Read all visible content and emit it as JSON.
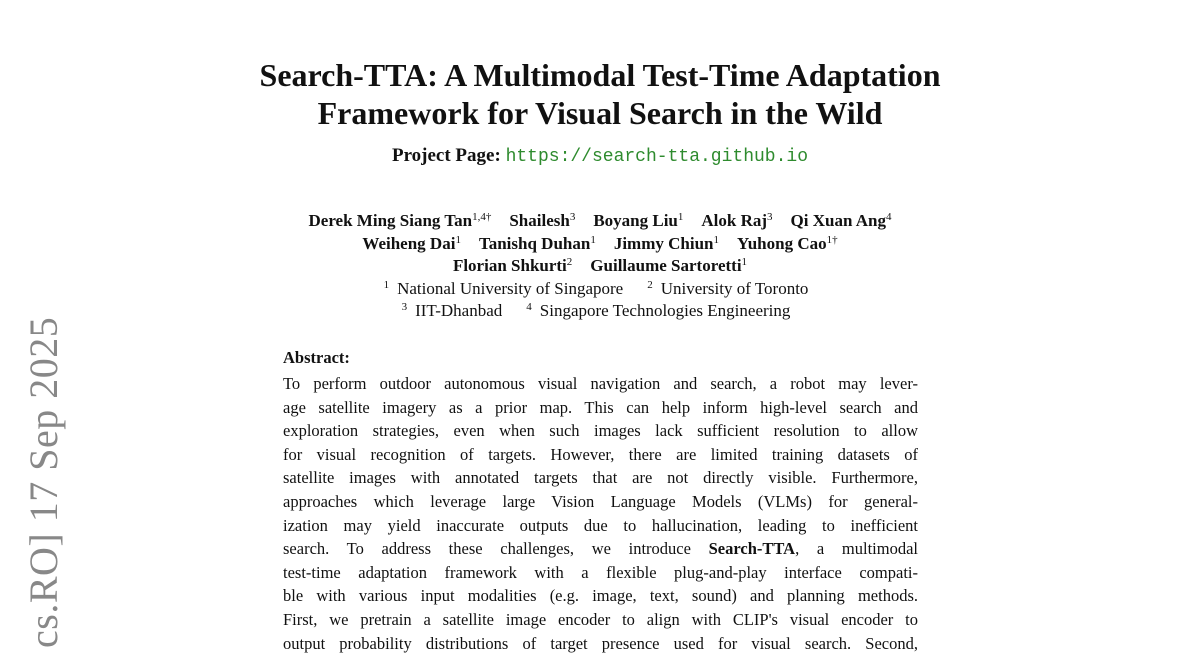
{
  "title_lines": [
    "Search-TTA: A Multimodal Test-Time Adaptation",
    "Framework for Visual Search in the Wild"
  ],
  "project": {
    "label": "Project Page:",
    "url": "https://search-tta.github.io"
  },
  "authors": [
    [
      {
        "name": "Derek Ming Siang Tan",
        "sup": "1,4†"
      },
      {
        "name": "Shailesh",
        "sup": "3"
      },
      {
        "name": "Boyang Liu",
        "sup": "1"
      },
      {
        "name": "Alok Raj",
        "sup": "3"
      },
      {
        "name": "Qi Xuan Ang",
        "sup": "4"
      }
    ],
    [
      {
        "name": "Weiheng Dai",
        "sup": "1"
      },
      {
        "name": "Tanishq Duhan",
        "sup": "1"
      },
      {
        "name": "Jimmy Chiun",
        "sup": "1"
      },
      {
        "name": "Yuhong Cao",
        "sup": "1†"
      }
    ],
    [
      {
        "name": "Florian Shkurti",
        "sup": "2"
      },
      {
        "name": "Guillaume Sartoretti",
        "sup": "1"
      }
    ]
  ],
  "affiliations": [
    [
      {
        "sup": "1",
        "name": "National University of Singapore"
      },
      {
        "sup": "2",
        "name": "University of Toronto"
      }
    ],
    [
      {
        "sup": "3",
        "name": "IIT-Dhanbad"
      },
      {
        "sup": "4",
        "name": "Singapore Technologies Engineering"
      }
    ]
  ],
  "abstract": {
    "heading": "Abstract:",
    "lines": [
      "To perform outdoor autonomous visual navigation and search, a robot may lever-",
      "age satellite imagery as a prior map. This can help inform high-level search and",
      "exploration strategies, even when such images lack sufficient resolution to allow",
      "for visual recognition of targets. However, there are limited training datasets of",
      "satellite images with annotated targets that are not directly visible. Furthermore,",
      "approaches which leverage large Vision Language Models (VLMs) for general-",
      "ization may yield inaccurate outputs due to hallucination, leading to inefficient",
      "",
      "test-time adaptation framework with a flexible plug-and-play interface compati-",
      "ble with various input modalities (e.g. image, text, sound) and planning methods.",
      "First, we pretrain a satellite image encoder to align with CLIP's visual encoder to",
      "output probability distributions of target presence used for visual search. Second,"
    ],
    "line8": {
      "pre": "search.  To address these challenges, we introduce ",
      "bold": "Search-TTA",
      "post": ", a multimodal"
    }
  },
  "sidebar": {
    "text": "cs.RO]  17 Sep 2025"
  }
}
